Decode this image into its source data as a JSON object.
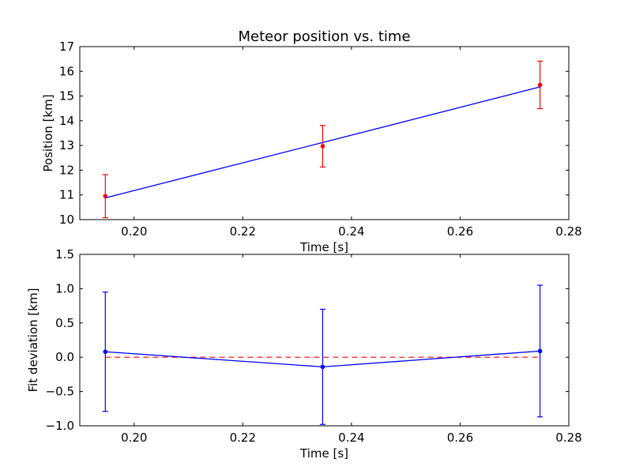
{
  "chart_data": [
    {
      "type": "line",
      "title": "Meteor position vs. time",
      "xlabel": "Time [s]",
      "ylabel": "Position [km]",
      "xlim": [
        0.19,
        0.28
      ],
      "ylim": [
        10,
        17
      ],
      "xticks": [
        0.2,
        0.22,
        0.24,
        0.26,
        0.28
      ],
      "xtick_labels": [
        "0.20",
        "0.22",
        "0.24",
        "0.26",
        "0.28"
      ],
      "yticks": [
        10,
        11,
        12,
        13,
        14,
        15,
        16,
        17
      ],
      "ytick_labels": [
        "10",
        "11",
        "12",
        "13",
        "14",
        "15",
        "16",
        "17"
      ],
      "series": [
        {
          "style": "errorbar-points",
          "color": "#ff0000",
          "x": [
            0.1947,
            0.2347,
            0.2747
          ],
          "y": [
            10.95,
            12.97,
            15.45
          ],
          "yerr": [
            0.87,
            0.84,
            0.96
          ]
        },
        {
          "style": "line",
          "color": "#0000ff",
          "x": [
            0.1947,
            0.2347,
            0.2747
          ],
          "y": [
            10.88,
            13.12,
            15.37
          ]
        }
      ]
    },
    {
      "type": "line",
      "title": "",
      "xlabel": "Time [s]",
      "ylabel": "Fit deviation [km]",
      "xlim": [
        0.19,
        0.28
      ],
      "ylim": [
        -1.0,
        1.5
      ],
      "xticks": [
        0.2,
        0.22,
        0.24,
        0.26,
        0.28
      ],
      "xtick_labels": [
        "0.20",
        "0.22",
        "0.24",
        "0.26",
        "0.28"
      ],
      "yticks": [
        -1.0,
        -0.5,
        0.0,
        0.5,
        1.0,
        1.5
      ],
      "ytick_labels": [
        "−1.0",
        "−0.5",
        "0.0",
        "0.5",
        "1.0",
        "1.5"
      ],
      "reference_line": {
        "y": 0.0,
        "color": "#ff0000",
        "dashed": true
      },
      "series": [
        {
          "style": "errorbar-line",
          "color": "#0000ff",
          "x": [
            0.1947,
            0.2347,
            0.2747
          ],
          "y": [
            0.08,
            -0.14,
            0.09
          ],
          "yerr": [
            0.87,
            0.84,
            0.96
          ]
        }
      ]
    }
  ]
}
